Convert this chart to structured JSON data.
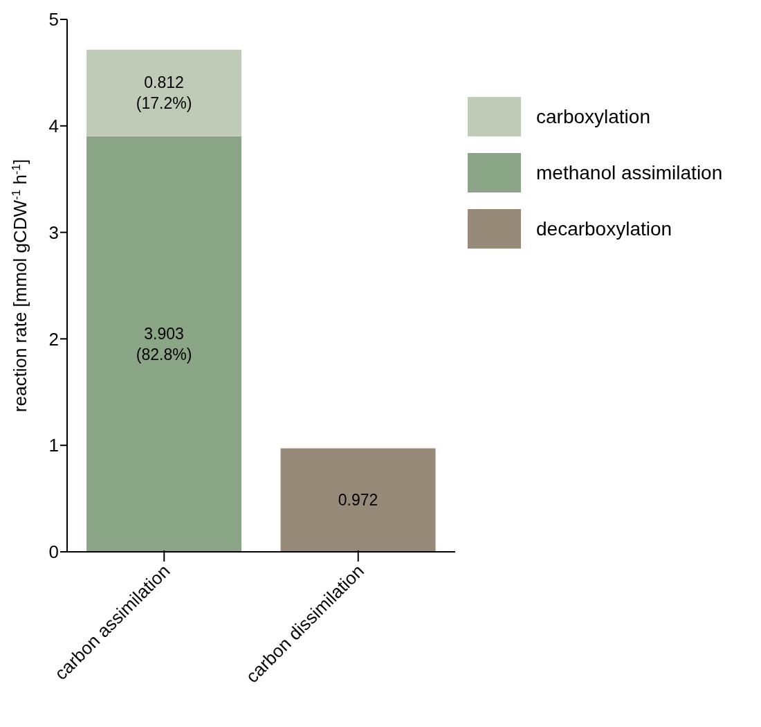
{
  "chart_data": {
    "type": "bar",
    "stacked": true,
    "ylabel": "reaction rate [mmol gCDW$^{-1}$ h$^{-1}$]",
    "categories": [
      "carbon assimilation",
      "carbon dissimilation"
    ],
    "series": [
      {
        "name": "methanol assimilation",
        "color": "#8ba587",
        "values": [
          3.903,
          null
        ],
        "value_labels": [
          "3.903\n(82.8%)",
          null
        ]
      },
      {
        "name": "carboxylation",
        "color": "#bfcbb7",
        "values": [
          0.812,
          null
        ],
        "value_labels": [
          "0.812\n(17.2%)",
          null
        ]
      },
      {
        "name": "decarboxylation",
        "color": "#978a79",
        "values": [
          null,
          0.972
        ],
        "value_labels": [
          null,
          "0.972"
        ]
      }
    ],
    "ylim": [
      0,
      5
    ],
    "yticks": [
      0,
      1,
      2,
      3,
      4,
      5
    ],
    "legend": "right"
  }
}
